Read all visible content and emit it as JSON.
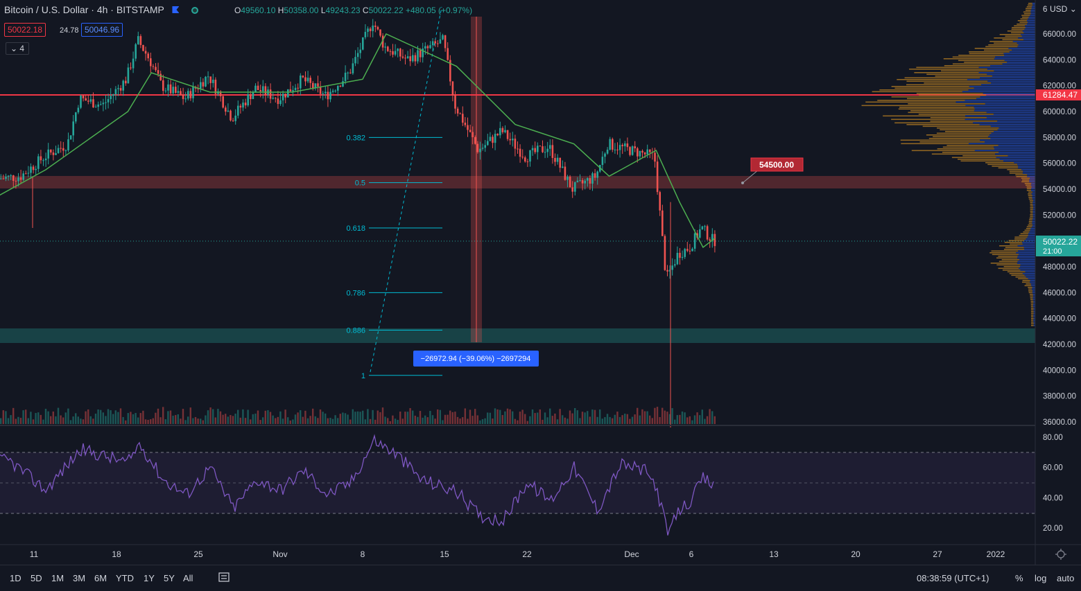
{
  "header": {
    "symbol": "Bitcoin / U.S. Dollar",
    "interval": "4h",
    "exchange": "BITSTAMP",
    "ohlc": {
      "o_label": "O",
      "o": "49560.10",
      "h_label": "H",
      "h": "50358.00",
      "l_label": "L",
      "l": "49243.23",
      "c_label": "C",
      "c": "50022.22",
      "change": "+480.05 (+0.97%)"
    },
    "bid": "50022.18",
    "spread": "24.78",
    "ask": "50046.96",
    "indicators_count": "4"
  },
  "currency": "USD",
  "price_axis": {
    "ticks": [
      "66000.00",
      "64000.00",
      "62000.00",
      "60000.00",
      "58000.00",
      "56000.00",
      "54000.00",
      "52000.00",
      "50000.00",
      "48000.00",
      "46000.00",
      "44000.00",
      "42000.00",
      "40000.00",
      "38000.00",
      "36000.00"
    ],
    "top_partial": "6",
    "red_line_label": "61284.47",
    "last_price_label": "50022.22",
    "last_price_countdown": "21:00"
  },
  "rsi_axis": {
    "ticks": [
      "80.00",
      "60.00",
      "40.00",
      "20.00"
    ]
  },
  "time_axis": {
    "ticks": [
      "11",
      "18",
      "25",
      "Nov",
      "8",
      "15",
      "22",
      "Dec",
      "6",
      "13",
      "20",
      "27",
      "2022"
    ]
  },
  "fib": {
    "levels": [
      "0.382",
      "0.5",
      "0.618",
      "0.786",
      "0.886",
      "1"
    ]
  },
  "price_alert": "54500.00",
  "measure_label": "−26972.94 (−39.06%) −2697294",
  "bottom": {
    "ranges": [
      "1D",
      "5D",
      "1M",
      "3M",
      "6M",
      "YTD",
      "1Y",
      "5Y",
      "All"
    ],
    "clock": "08:38:59 (UTC+1)",
    "percent": "%",
    "log": "log",
    "auto": "auto"
  },
  "colors": {
    "bg": "#131722",
    "up": "#26a69a",
    "down": "#ef5350",
    "ma": "#4caf50",
    "rsi": "#7e57c2",
    "fib": "#00bcd4",
    "red_line": "#f23645",
    "accent": "#2962ff"
  },
  "chart_data": {
    "type": "candlestick",
    "symbol": "Bitcoin / U.S. Dollar",
    "timeframe": "4h",
    "ylim": [
      36000,
      67000
    ],
    "close_path": [
      {
        "x": "Oct 5",
        "y": 53500
      },
      {
        "x": "Oct 8",
        "y": 54800
      },
      {
        "x": "Oct 10",
        "y": 55000
      },
      {
        "x": "Oct 12",
        "y": 56500
      },
      {
        "x": "Oct 14",
        "y": 57500
      },
      {
        "x": "Oct 15",
        "y": 61000
      },
      {
        "x": "Oct 17",
        "y": 60500
      },
      {
        "x": "Oct 19",
        "y": 62500
      },
      {
        "x": "Oct 20",
        "y": 65500
      },
      {
        "x": "Oct 21",
        "y": 64000
      },
      {
        "x": "Oct 22",
        "y": 62000
      },
      {
        "x": "Oct 24",
        "y": 61000
      },
      {
        "x": "Oct 26",
        "y": 62800
      },
      {
        "x": "Oct 28",
        "y": 59500
      },
      {
        "x": "Oct 30",
        "y": 61800
      },
      {
        "x": "Nov 1",
        "y": 61000
      },
      {
        "x": "Nov 3",
        "y": 62500
      },
      {
        "x": "Nov 5",
        "y": 61200
      },
      {
        "x": "Nov 7",
        "y": 63000
      },
      {
        "x": "Nov 9",
        "y": 67000
      },
      {
        "x": "Nov 10",
        "y": 65000
      },
      {
        "x": "Nov 12",
        "y": 64000
      },
      {
        "x": "Nov 15",
        "y": 65500
      },
      {
        "x": "Nov 16",
        "y": 60500
      },
      {
        "x": "Nov 18",
        "y": 57000
      },
      {
        "x": "Nov 20",
        "y": 58500
      },
      {
        "x": "Nov 22",
        "y": 56500
      },
      {
        "x": "Nov 24",
        "y": 57300
      },
      {
        "x": "Nov 26",
        "y": 54000
      },
      {
        "x": "Nov 28",
        "y": 55000
      },
      {
        "x": "Nov 29",
        "y": 57500
      },
      {
        "x": "Dec 1",
        "y": 57000
      },
      {
        "x": "Dec 3",
        "y": 56500
      },
      {
        "x": "Dec 4",
        "y": 47000
      },
      {
        "x": "Dec 5",
        "y": 49000
      },
      {
        "x": "Dec 6",
        "y": 49500
      },
      {
        "x": "Dec 7",
        "y": 51000
      },
      {
        "x": "Dec 8",
        "y": 50022.22
      }
    ],
    "ma_path": [
      {
        "x": "Oct 5",
        "y": 52000
      },
      {
        "x": "Oct 12",
        "y": 55500
      },
      {
        "x": "Oct 19",
        "y": 60000
      },
      {
        "x": "Oct 21",
        "y": 63000
      },
      {
        "x": "Oct 26",
        "y": 61500
      },
      {
        "x": "Nov 2",
        "y": 61500
      },
      {
        "x": "Nov 8",
        "y": 62500
      },
      {
        "x": "Nov 10",
        "y": 66000
      },
      {
        "x": "Nov 16",
        "y": 63500
      },
      {
        "x": "Nov 21",
        "y": 59000
      },
      {
        "x": "Nov 26",
        "y": 57500
      },
      {
        "x": "Nov 29",
        "y": 55000
      },
      {
        "x": "Dec 3",
        "y": 57000
      },
      {
        "x": "Dec 5",
        "y": 53000
      },
      {
        "x": "Dec 7",
        "y": 49500
      },
      {
        "x": "Dec 8",
        "y": 50200
      }
    ],
    "rsi_path": [
      {
        "x": "Oct 5",
        "y": 68
      },
      {
        "x": "Oct 9",
        "y": 64
      },
      {
        "x": "Oct 12",
        "y": 45
      },
      {
        "x": "Oct 15",
        "y": 72
      },
      {
        "x": "Oct 19",
        "y": 63
      },
      {
        "x": "Oct 20",
        "y": 76
      },
      {
        "x": "Oct 22",
        "y": 52
      },
      {
        "x": "Oct 24",
        "y": 42
      },
      {
        "x": "Oct 26",
        "y": 60
      },
      {
        "x": "Oct 28",
        "y": 33
      },
      {
        "x": "Oct 30",
        "y": 52
      },
      {
        "x": "Nov 1",
        "y": 45
      },
      {
        "x": "Nov 3",
        "y": 58
      },
      {
        "x": "Nov 5",
        "y": 42
      },
      {
        "x": "Nov 7",
        "y": 50
      },
      {
        "x": "Nov 9",
        "y": 78
      },
      {
        "x": "Nov 11",
        "y": 68
      },
      {
        "x": "Nov 13",
        "y": 52
      },
      {
        "x": "Nov 16",
        "y": 44
      },
      {
        "x": "Nov 18",
        "y": 28
      },
      {
        "x": "Nov 20",
        "y": 25
      },
      {
        "x": "Nov 22",
        "y": 50
      },
      {
        "x": "Nov 24",
        "y": 38
      },
      {
        "x": "Nov 26",
        "y": 60
      },
      {
        "x": "Nov 28",
        "y": 32
      },
      {
        "x": "Nov 30",
        "y": 62
      },
      {
        "x": "Dec 2",
        "y": 58
      },
      {
        "x": "Dec 3",
        "y": 48
      },
      {
        "x": "Dec 4",
        "y": 16
      },
      {
        "x": "Dec 5",
        "y": 32
      },
      {
        "x": "Dec 6",
        "y": 38
      },
      {
        "x": "Dec 7",
        "y": 53
      },
      {
        "x": "Dec 8",
        "y": 47
      }
    ],
    "rsi_ylim": [
      10,
      85
    ],
    "rsi_bands": [
      70,
      50,
      30
    ],
    "horizontal_line": 61284.47,
    "zones": [
      {
        "from": 54300,
        "to": 55200,
        "color": "#ef5350"
      },
      {
        "from": 42000,
        "to": 43200,
        "color": "#26a69a"
      }
    ],
    "fib_levels": [
      {
        "label": "0.382",
        "y": 58000
      },
      {
        "label": "0.5",
        "y": 54500
      },
      {
        "label": "0.618",
        "y": 51000
      },
      {
        "label": "0.786",
        "y": 46000
      },
      {
        "label": "0.886",
        "y": 43100
      },
      {
        "label": "1",
        "y": 39600
      }
    ]
  }
}
